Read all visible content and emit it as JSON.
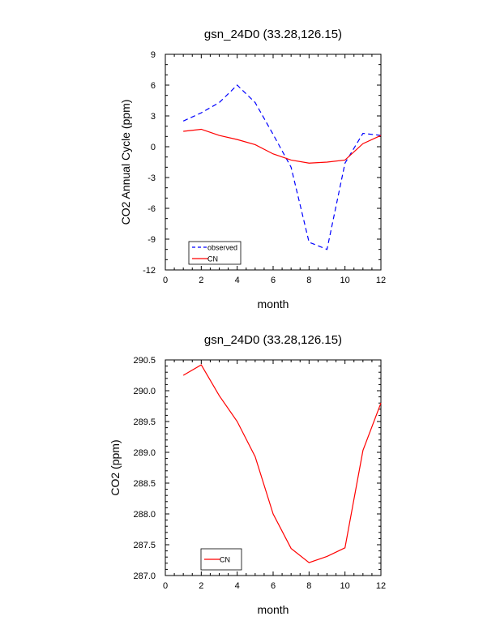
{
  "chart_data": [
    {
      "type": "line",
      "title": "gsn_24D0 (33.28,126.15)",
      "xlabel": "month",
      "ylabel": "CO2 Annual Cycle (ppm)",
      "xlim": [
        0,
        12
      ],
      "ylim": [
        -12,
        9
      ],
      "xticks": [
        0,
        2,
        4,
        6,
        8,
        10,
        12
      ],
      "xtick_labels": [
        "0",
        "2",
        "4",
        "6",
        "8",
        "10",
        "12"
      ],
      "yticks": [
        -12,
        -9,
        -6,
        -3,
        0,
        3,
        6,
        9
      ],
      "ytick_labels": [
        "-12",
        "-9",
        "-6",
        "-3",
        "0",
        "3",
        "6",
        "9"
      ],
      "grid": false,
      "legend_position": "bottom-left",
      "series": [
        {
          "name": "observed",
          "color": "#0000ff",
          "dash": "dashed",
          "x": [
            1,
            2,
            3,
            4,
            5,
            6,
            7,
            8,
            9,
            10,
            11,
            12
          ],
          "y": [
            2.5,
            3.3,
            4.3,
            6.0,
            4.3,
            1.2,
            -2.0,
            -9.3,
            -10.0,
            -1.6,
            1.3,
            1.1
          ]
        },
        {
          "name": "CN",
          "color": "#ff0000",
          "dash": "solid",
          "x": [
            1,
            2,
            3,
            4,
            5,
            6,
            7,
            8,
            9,
            10,
            11,
            12
          ],
          "y": [
            1.5,
            1.7,
            1.1,
            0.7,
            0.2,
            -0.7,
            -1.3,
            -1.6,
            -1.5,
            -1.3,
            0.3,
            1.1
          ]
        }
      ]
    },
    {
      "type": "line",
      "title": "gsn_24D0 (33.28,126.15)",
      "xlabel": "month",
      "ylabel": "CO2 (ppm)",
      "xlim": [
        0,
        12
      ],
      "ylim": [
        287.0,
        290.5
      ],
      "xticks": [
        0,
        2,
        4,
        6,
        8,
        10,
        12
      ],
      "xtick_labels": [
        "0",
        "2",
        "4",
        "6",
        "8",
        "10",
        "12"
      ],
      "yticks": [
        287.0,
        287.5,
        288.0,
        288.5,
        289.0,
        289.5,
        290.0,
        290.5
      ],
      "ytick_labels": [
        "287.0",
        "287.5",
        "288.0",
        "288.5",
        "289.0",
        "289.5",
        "290.0",
        "290.5"
      ],
      "grid": false,
      "legend_position": "bottom-left",
      "series": [
        {
          "name": "CN",
          "color": "#ff0000",
          "dash": "solid",
          "x": [
            1,
            2,
            3,
            4,
            5,
            6,
            7,
            8,
            9,
            10,
            11,
            12
          ],
          "y": [
            290.25,
            290.42,
            289.92,
            289.5,
            288.93,
            288.0,
            287.44,
            287.21,
            287.31,
            287.45,
            289.03,
            289.8
          ]
        }
      ]
    }
  ]
}
